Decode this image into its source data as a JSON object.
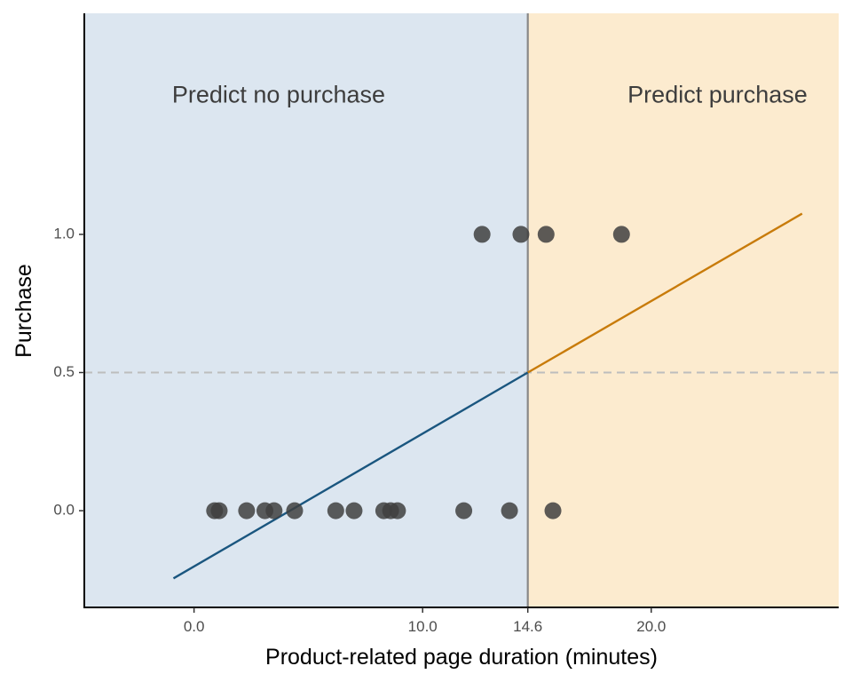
{
  "chart_data": {
    "type": "scatter",
    "xlabel": "Product-related page duration (minutes)",
    "ylabel": "Purchase",
    "xlim": [
      -4.8,
      28.2
    ],
    "ylim": [
      -0.35,
      1.8
    ],
    "x_ticks": [
      {
        "value": 0,
        "label": "0.0"
      },
      {
        "value": 10,
        "label": "10.0"
      },
      {
        "value": 14.6,
        "label": "14.6"
      },
      {
        "value": 20,
        "label": "20.0"
      }
    ],
    "y_ticks": [
      {
        "value": 0,
        "label": "0.0"
      },
      {
        "value": 0.5,
        "label": "0.5"
      },
      {
        "value": 1,
        "label": "1.0"
      }
    ],
    "threshold_x": 14.6,
    "threshold_y": 0.5,
    "regions": [
      {
        "label": "Predict no purchase",
        "x_from": -4.8,
        "x_to": 14.6,
        "color": "#dce6f0",
        "label_x": 3.7,
        "label_y": 1.5
      },
      {
        "label": "Predict purchase",
        "x_from": 14.6,
        "x_to": 28.2,
        "color": "#fcebcf",
        "label_x": 22.9,
        "label_y": 1.5
      }
    ],
    "fit_line": [
      {
        "x_from": -0.9,
        "y_from": -0.245,
        "x_to": 14.6,
        "y_to": 0.5,
        "color": "#1a567f"
      },
      {
        "x_from": 14.6,
        "y_from": 0.5,
        "x_to": 26.6,
        "y_to": 1.075,
        "color": "#c87b0a"
      }
    ],
    "points": [
      {
        "x": 0.9,
        "y": 0
      },
      {
        "x": 1.1,
        "y": 0
      },
      {
        "x": 2.3,
        "y": 0
      },
      {
        "x": 3.1,
        "y": 0
      },
      {
        "x": 3.5,
        "y": 0
      },
      {
        "x": 4.4,
        "y": 0
      },
      {
        "x": 6.2,
        "y": 0
      },
      {
        "x": 7.0,
        "y": 0
      },
      {
        "x": 8.3,
        "y": 0
      },
      {
        "x": 8.6,
        "y": 0
      },
      {
        "x": 8.9,
        "y": 0
      },
      {
        "x": 11.8,
        "y": 0
      },
      {
        "x": 13.8,
        "y": 0
      },
      {
        "x": 15.7,
        "y": 0
      },
      {
        "x": 12.6,
        "y": 1
      },
      {
        "x": 14.3,
        "y": 1
      },
      {
        "x": 15.4,
        "y": 1
      },
      {
        "x": 18.7,
        "y": 1
      }
    ],
    "colors": {
      "point": "#404040",
      "threshold_line": "#888888",
      "dashed_line": "#bdbdbd",
      "axis": "#000000"
    }
  }
}
